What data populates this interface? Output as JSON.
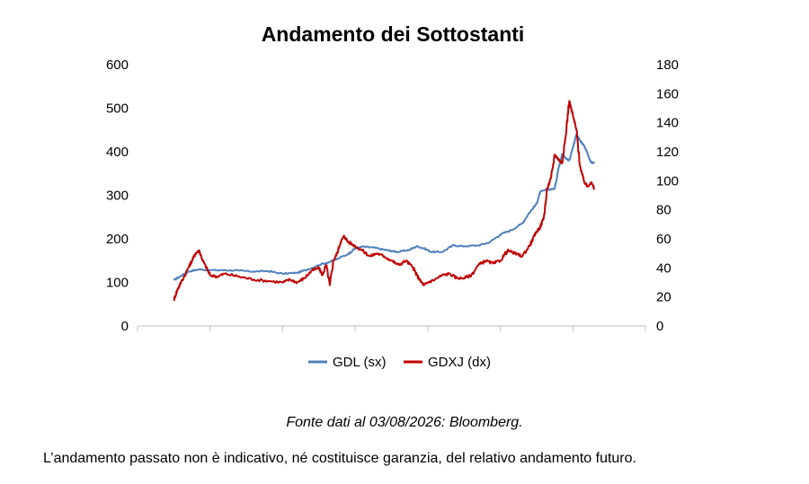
{
  "chart_data": {
    "type": "line",
    "title": "Andamento dei Sottostanti",
    "y_left": {
      "min": 0,
      "max": 600,
      "ticks": [
        "0",
        "100",
        "200",
        "300",
        "400",
        "500",
        "600"
      ]
    },
    "y_right": {
      "min": 0,
      "max": 180,
      "ticks": [
        "0",
        "20",
        "40",
        "60",
        "80",
        "100",
        "120",
        "140",
        "160",
        "180"
      ]
    },
    "x": {
      "min": 0,
      "max": 7,
      "tick_count": 8,
      "tick_labels": []
    },
    "legend_position": "bottom",
    "grid": false,
    "series": [
      {
        "name": "GDL (sx)",
        "axis": "left",
        "color": "#4f81bd",
        "points": [
          [
            0.5,
            105
          ],
          [
            0.6,
            115
          ],
          [
            0.7,
            125
          ],
          [
            0.85,
            130
          ],
          [
            1.0,
            128
          ],
          [
            1.2,
            128
          ],
          [
            1.4,
            127
          ],
          [
            1.6,
            125
          ],
          [
            1.8,
            126
          ],
          [
            2.0,
            120
          ],
          [
            2.2,
            122
          ],
          [
            2.35,
            130
          ],
          [
            2.5,
            140
          ],
          [
            2.7,
            150
          ],
          [
            2.9,
            165
          ],
          [
            3.0,
            178
          ],
          [
            3.1,
            182
          ],
          [
            3.25,
            180
          ],
          [
            3.4,
            175
          ],
          [
            3.5,
            172
          ],
          [
            3.6,
            170
          ],
          [
            3.75,
            175
          ],
          [
            3.85,
            183
          ],
          [
            3.95,
            178
          ],
          [
            4.05,
            170
          ],
          [
            4.2,
            170
          ],
          [
            4.35,
            185
          ],
          [
            4.5,
            183
          ],
          [
            4.7,
            185
          ],
          [
            4.85,
            192
          ],
          [
            5.0,
            210
          ],
          [
            5.15,
            220
          ],
          [
            5.3,
            235
          ],
          [
            5.4,
            260
          ],
          [
            5.5,
            280
          ],
          [
            5.55,
            308
          ],
          [
            5.65,
            313
          ],
          [
            5.75,
            315
          ],
          [
            5.8,
            360
          ],
          [
            5.85,
            395
          ],
          [
            5.9,
            385
          ],
          [
            5.95,
            380
          ],
          [
            6.0,
            410
          ],
          [
            6.05,
            440
          ],
          [
            6.1,
            425
          ],
          [
            6.15,
            415
          ],
          [
            6.2,
            398
          ],
          [
            6.25,
            375
          ],
          [
            6.3,
            375
          ]
        ]
      },
      {
        "name": "GDXJ (dx)",
        "axis": "right",
        "color": "#c00000",
        "points": [
          [
            0.5,
            18
          ],
          [
            0.55,
            25
          ],
          [
            0.6,
            30
          ],
          [
            0.7,
            40
          ],
          [
            0.75,
            45
          ],
          [
            0.8,
            50
          ],
          [
            0.85,
            52
          ],
          [
            0.9,
            45
          ],
          [
            0.95,
            40
          ],
          [
            1.0,
            35
          ],
          [
            1.1,
            34
          ],
          [
            1.2,
            36
          ],
          [
            1.4,
            34
          ],
          [
            1.6,
            32
          ],
          [
            1.8,
            31
          ],
          [
            2.0,
            30
          ],
          [
            2.1,
            32
          ],
          [
            2.2,
            30
          ],
          [
            2.3,
            33
          ],
          [
            2.4,
            38
          ],
          [
            2.5,
            40
          ],
          [
            2.55,
            35
          ],
          [
            2.6,
            42
          ],
          [
            2.65,
            28
          ],
          [
            2.7,
            45
          ],
          [
            2.75,
            50
          ],
          [
            2.8,
            58
          ],
          [
            2.85,
            62
          ],
          [
            2.9,
            58
          ],
          [
            3.0,
            55
          ],
          [
            3.1,
            52
          ],
          [
            3.2,
            48
          ],
          [
            3.3,
            50
          ],
          [
            3.4,
            48
          ],
          [
            3.5,
            45
          ],
          [
            3.6,
            42
          ],
          [
            3.7,
            45
          ],
          [
            3.8,
            40
          ],
          [
            3.85,
            35
          ],
          [
            3.9,
            31
          ],
          [
            3.95,
            28
          ],
          [
            4.0,
            30
          ],
          [
            4.1,
            32
          ],
          [
            4.2,
            35
          ],
          [
            4.3,
            36
          ],
          [
            4.4,
            33
          ],
          [
            4.5,
            33
          ],
          [
            4.6,
            35
          ],
          [
            4.7,
            42
          ],
          [
            4.8,
            45
          ],
          [
            4.9,
            43
          ],
          [
            5.0,
            45
          ],
          [
            5.1,
            52
          ],
          [
            5.2,
            50
          ],
          [
            5.3,
            48
          ],
          [
            5.4,
            55
          ],
          [
            5.45,
            60
          ],
          [
            5.5,
            65
          ],
          [
            5.55,
            68
          ],
          [
            5.6,
            75
          ],
          [
            5.65,
            95
          ],
          [
            5.7,
            102
          ],
          [
            5.75,
            118
          ],
          [
            5.8,
            115
          ],
          [
            5.85,
            112
          ],
          [
            5.9,
            130
          ],
          [
            5.95,
            155
          ],
          [
            6.0,
            145
          ],
          [
            6.05,
            135
          ],
          [
            6.1,
            110
          ],
          [
            6.15,
            100
          ],
          [
            6.2,
            96
          ],
          [
            6.25,
            99
          ],
          [
            6.3,
            94
          ]
        ]
      }
    ]
  },
  "notes": {
    "source": "Fonte dati al 03/08/2026: Bloomberg.",
    "disclaimer": "L’andamento passato non è indicativo, né costituisce garanzia, del relativo andamento futuro."
  }
}
